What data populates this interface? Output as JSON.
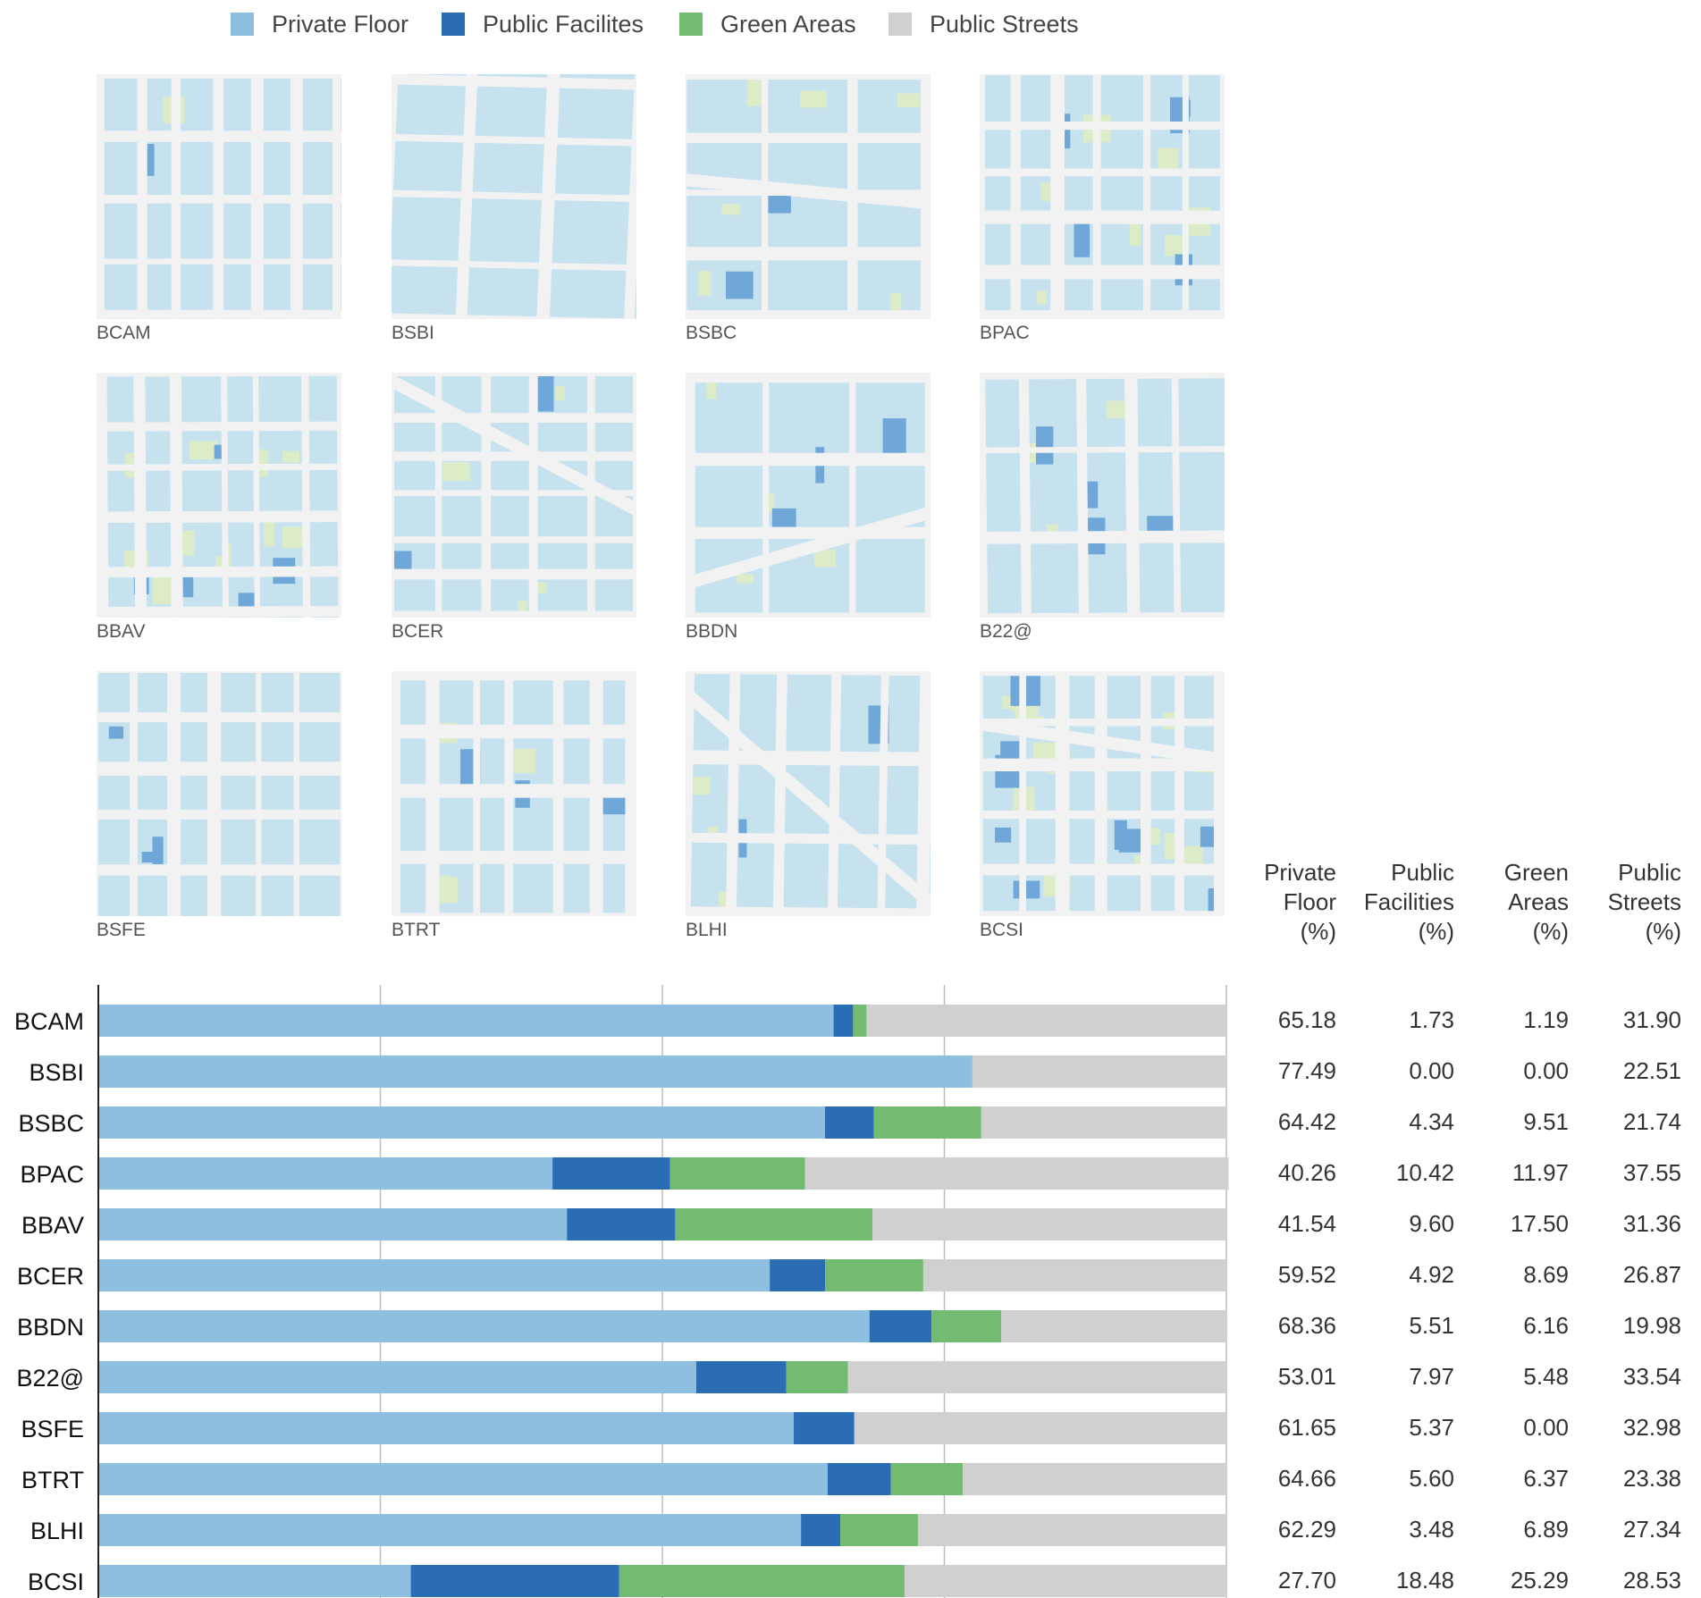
{
  "legend": {
    "items": [
      {
        "label": "Private Floor",
        "color": "#8fbfe0"
      },
      {
        "label": "Public Facilites",
        "color": "#2a6db5"
      },
      {
        "label": "Green Areas",
        "color": "#74bb72"
      },
      {
        "label": "Public Streets",
        "color": "#d0d0d0"
      }
    ]
  },
  "maps": [
    {
      "label": "BCAM"
    },
    {
      "label": "BSBI"
    },
    {
      "label": "BSBC"
    },
    {
      "label": "BPAC"
    },
    {
      "label": "BBAV"
    },
    {
      "label": "BCER"
    },
    {
      "label": "BBDN"
    },
    {
      "label": "B22@"
    },
    {
      "label": "BSFE"
    },
    {
      "label": "BTRT"
    },
    {
      "label": "BLHI"
    },
    {
      "label": "BCSI"
    }
  ],
  "table_headers": [
    {
      "line1": "Private",
      "line2": "Floor",
      "line3": "(%)"
    },
    {
      "line1": "Public",
      "line2": "Facilities",
      "line3": "(%)"
    },
    {
      "line1": "Green",
      "line2": "Areas",
      "line3": "(%)"
    },
    {
      "line1": "Public",
      "line2": "Streets",
      "line3": "(%)"
    }
  ],
  "table_values": [
    [
      "65.18",
      "1.73",
      "1.19",
      "31.90"
    ],
    [
      "77.49",
      "0.00",
      "0.00",
      "22.51"
    ],
    [
      "64.42",
      "4.34",
      "9.51",
      "21.74"
    ],
    [
      "40.26",
      "10.42",
      "11.97",
      "37.55"
    ],
    [
      "41.54",
      "9.60",
      "17.50",
      "31.36"
    ],
    [
      "59.52",
      "4.92",
      "8.69",
      "26.87"
    ],
    [
      "68.36",
      "5.51",
      "6.16",
      "19.98"
    ],
    [
      "53.01",
      "7.97",
      "5.48",
      "33.54"
    ],
    [
      "61.65",
      "5.37",
      "0.00",
      "32.98"
    ],
    [
      "64.66",
      "5.60",
      "6.37",
      "23.38"
    ],
    [
      "62.29",
      "3.48",
      "6.89",
      "27.34"
    ],
    [
      "27.70",
      "18.48",
      "25.29",
      "28.53"
    ]
  ],
  "chart_data": {
    "type": "bar",
    "orientation": "horizontal",
    "stacked": true,
    "xlim": [
      0,
      100
    ],
    "grid": true,
    "legend_position": "top",
    "categories": [
      "BCAM",
      "BSBI",
      "BSBC",
      "BPAC",
      "BBAV",
      "BCER",
      "BBDN",
      "B22@",
      "BSFE",
      "BTRT",
      "BLHI",
      "BCSI"
    ],
    "series": [
      {
        "name": "Private Floor",
        "color": "#8fbfe0",
        "values": [
          65.18,
          77.49,
          64.42,
          40.26,
          41.54,
          59.52,
          68.36,
          53.01,
          61.65,
          64.66,
          62.29,
          27.7
        ]
      },
      {
        "name": "Public Facilites",
        "color": "#2a6db5",
        "values": [
          1.73,
          0.0,
          4.34,
          10.42,
          9.6,
          4.92,
          5.51,
          7.97,
          5.37,
          5.6,
          3.48,
          18.48
        ]
      },
      {
        "name": "Green Areas",
        "color": "#74bb72",
        "values": [
          1.19,
          0.0,
          9.51,
          11.97,
          17.5,
          8.69,
          6.16,
          5.48,
          0.0,
          6.37,
          6.89,
          25.29
        ]
      },
      {
        "name": "Public Streets",
        "color": "#d0d0d0",
        "values": [
          31.9,
          22.51,
          21.74,
          37.55,
          31.36,
          26.87,
          19.98,
          33.54,
          32.98,
          23.38,
          27.34,
          28.53
        ]
      }
    ]
  }
}
